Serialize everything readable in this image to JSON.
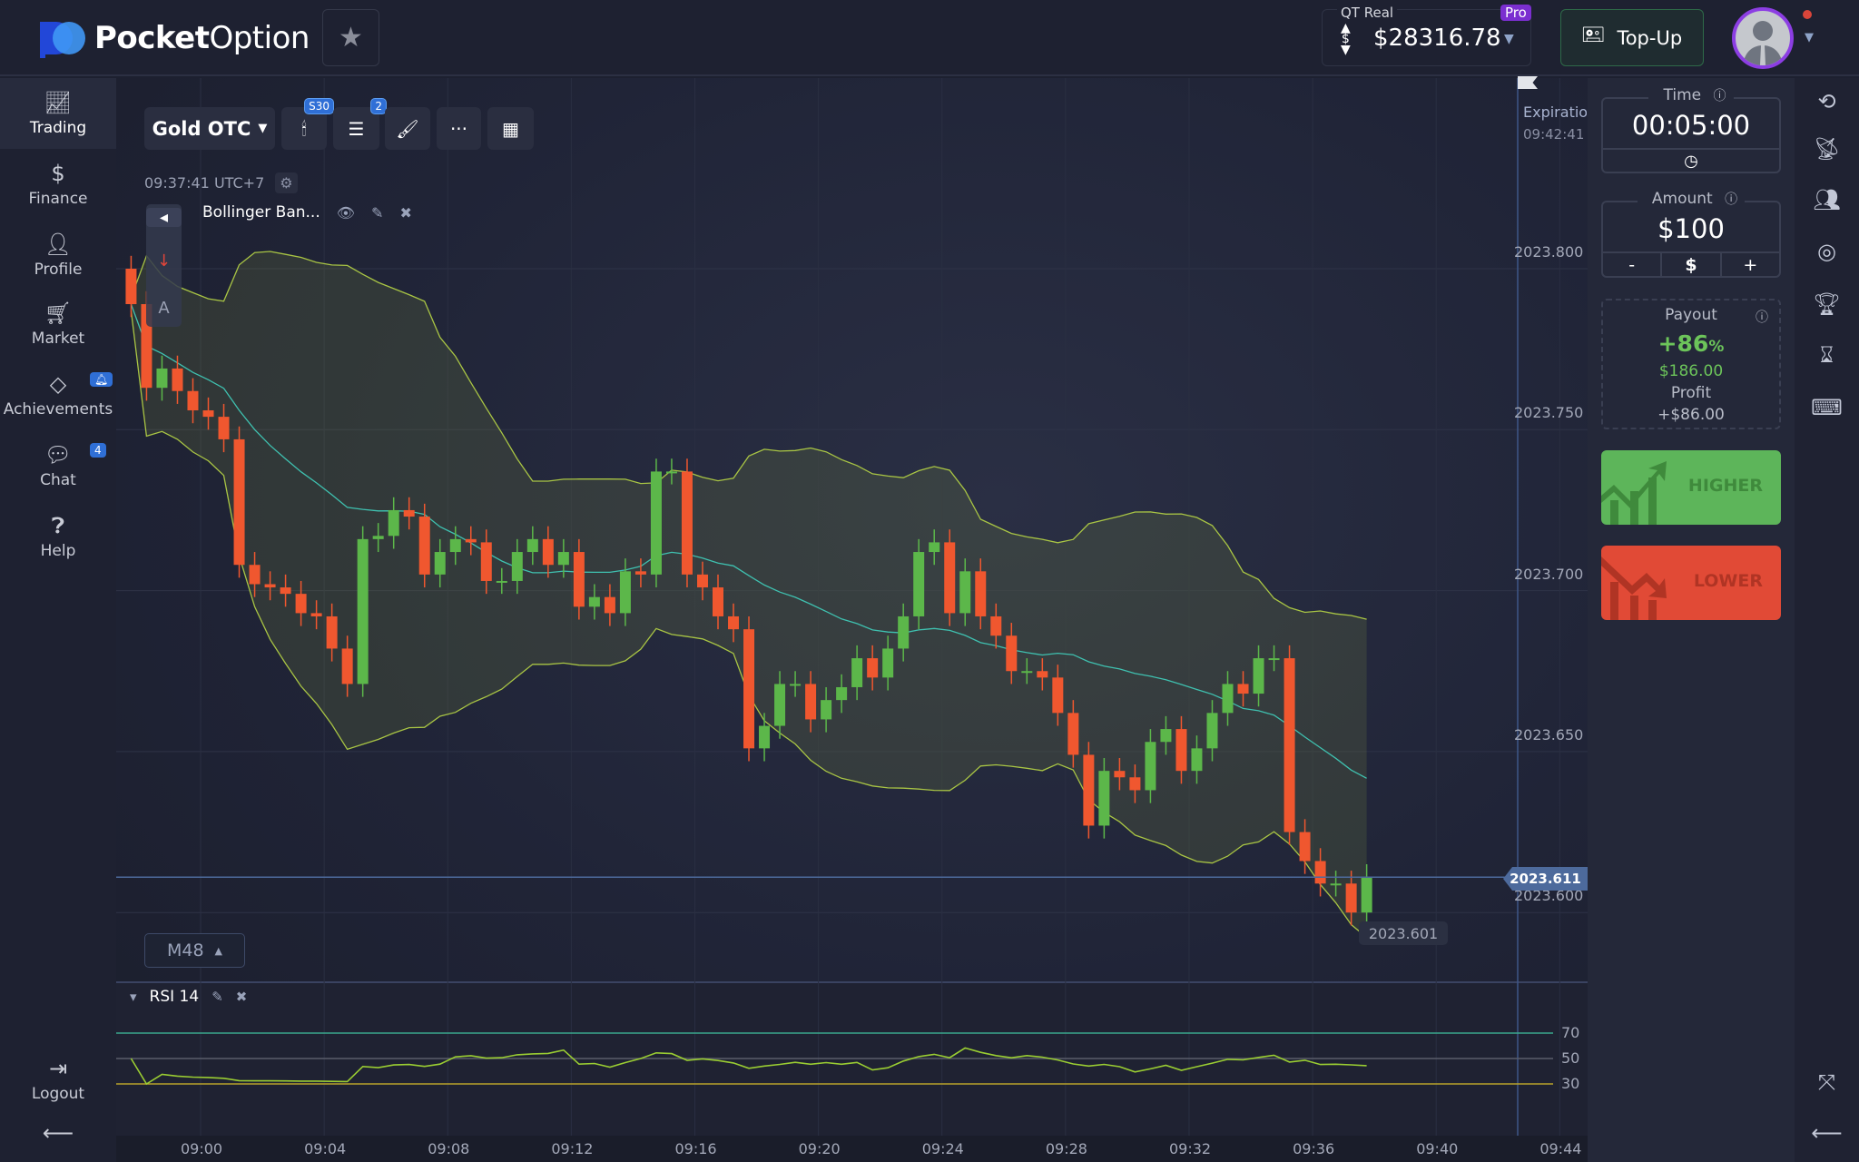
{
  "header": {
    "logo_bold": "Pocket",
    "logo_light": "Option",
    "account_type": "QT Real",
    "pro_badge": "Pro",
    "balance": "$28316.78",
    "topup_label": "Top-Up"
  },
  "sidebar": {
    "items": [
      {
        "label": "Trading",
        "icon": "chart-line-icon",
        "active": true
      },
      {
        "label": "Finance",
        "icon": "dollar-icon"
      },
      {
        "label": "Profile",
        "icon": "user-icon"
      },
      {
        "label": "Market",
        "icon": "cart-icon"
      },
      {
        "label": "Achievements",
        "icon": "diamond-icon",
        "badge": "bell"
      },
      {
        "label": "Chat",
        "icon": "chat-icon",
        "badge": "4"
      },
      {
        "label": "Help",
        "icon": "help-icon"
      }
    ],
    "logout_label": "Logout"
  },
  "toolbar": {
    "asset": "Gold OTC",
    "chart_timeframe_badge": "S30",
    "indicators_badge": "2",
    "clock": "09:37:41",
    "timezone": "UTC+7"
  },
  "indicators": {
    "bollinger_label": "Bollinger Ban...",
    "rsi_label": "RSI 14",
    "rsi_levels": [
      "70",
      "50",
      "30"
    ]
  },
  "chart": {
    "timeframe_button": "M48",
    "expiration_label": "Expiration",
    "expiration_time": "09:42:41",
    "current_price": "2023.611",
    "tooltip_price": "2023.601",
    "price_labels": [
      "2023.800",
      "2023.750",
      "2023.700",
      "2023.650",
      "2023.600"
    ],
    "time_labels": [
      "09:00",
      "09:04",
      "09:08",
      "09:12",
      "09:16",
      "09:20",
      "09:24",
      "09:28",
      "09:32",
      "09:36",
      "09:40",
      "09:44"
    ],
    "candle_interval": "S30",
    "first_open": 2023.8,
    "closes": [
      2023.789,
      2023.763,
      2023.769,
      2023.762,
      2023.756,
      2023.754,
      2023.747,
      2023.708,
      2023.702,
      2023.701,
      2023.699,
      2023.693,
      2023.692,
      2023.682,
      2023.671,
      2023.716,
      2023.717,
      2023.725,
      2023.723,
      2023.705,
      2023.712,
      2023.716,
      2023.715,
      2023.703,
      2023.703,
      2023.712,
      2023.716,
      2023.708,
      2023.712,
      2023.695,
      2023.698,
      2023.693,
      2023.706,
      2023.705,
      2023.737,
      2023.737,
      2023.705,
      2023.701,
      2023.692,
      2023.688,
      2023.651,
      2023.658,
      2023.671,
      2023.671,
      2023.66,
      2023.666,
      2023.67,
      2023.679,
      2023.673,
      2023.682,
      2023.692,
      2023.712,
      2023.715,
      2023.693,
      2023.706,
      2023.692,
      2023.686,
      2023.675,
      2023.675,
      2023.673,
      2023.662,
      2023.649,
      2023.627,
      2023.644,
      2023.642,
      2023.638,
      2023.653,
      2023.657,
      2023.644,
      2023.651,
      2023.662,
      2023.671,
      2023.668,
      2023.679,
      2023.679,
      2023.625,
      2023.616,
      2023.609,
      2023.609,
      2023.6,
      2023.611
    ],
    "colors": {
      "up": "#5cb74a",
      "down": "#f0572f",
      "band": "#a9c544",
      "middle": "#3fc1b0",
      "rsi": "#9acd32",
      "rsi70": "#3aa88d",
      "rsi50": "#5a5d6a",
      "rsi30": "#b8a22a"
    }
  },
  "trade_panel": {
    "time_label": "Time",
    "time_value": "00:05:00",
    "amount_label": "Amount",
    "amount_value": "$100",
    "minus": "-",
    "currency": "$",
    "plus": "+",
    "payout_label": "Payout",
    "payout_percent": "+86",
    "payout_percent_sign": "%",
    "payout_amount": "$186.00",
    "profit_label": "Profit",
    "profit_value": "+$86.00",
    "higher_label": "HIGHER",
    "lower_label": "LOWER",
    "higher_color": "#5db55a",
    "lower_color": "#e14a36"
  }
}
